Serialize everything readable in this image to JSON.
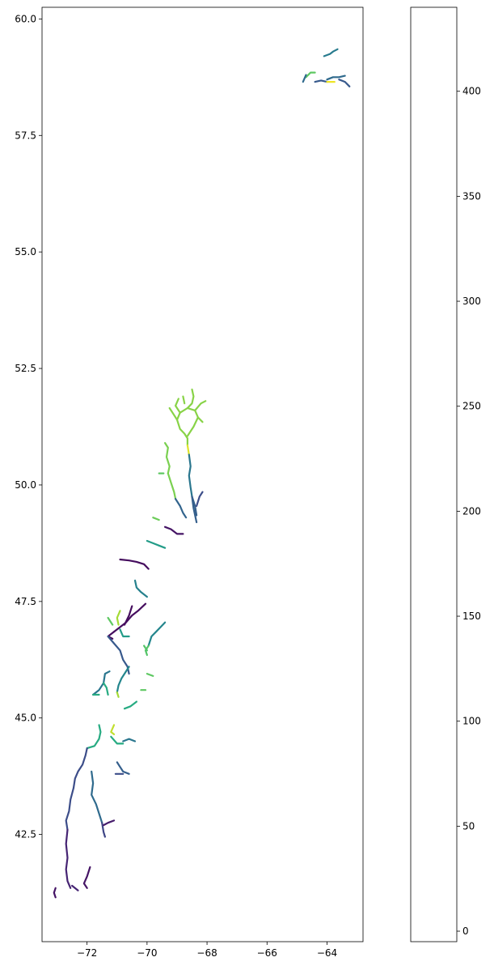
{
  "chart_data": {
    "type": "line",
    "title": "",
    "xlabel": "",
    "ylabel": "",
    "xlim": [
      -73.5,
      -62.8
    ],
    "ylim": [
      40.2,
      60.25
    ],
    "xticks": [
      -72,
      -70,
      -68,
      -66,
      -64
    ],
    "xtick_labels": [
      "−72",
      "−70",
      "−68",
      "−66",
      "−64"
    ],
    "yticks": [
      42.5,
      45.0,
      47.5,
      50.0,
      52.5,
      55.0,
      57.5,
      60.0
    ],
    "ytick_labels": [
      "42.5",
      "45.0",
      "47.5",
      "50.0",
      "52.5",
      "55.0",
      "57.5",
      "60.0"
    ],
    "colorbar": {
      "colormap": "viridis",
      "range": [
        -5,
        440
      ],
      "ticks": [
        0,
        50,
        100,
        150,
        200,
        250,
        300,
        350,
        400
      ],
      "tick_labels": [
        "0",
        "50",
        "100",
        "150",
        "200",
        "250",
        "300",
        "350",
        "400"
      ]
    },
    "segments": [
      {
        "value": 180,
        "points": [
          [
            -64.1,
            59.2
          ],
          [
            -63.9,
            59.25
          ],
          [
            -63.8,
            59.3
          ],
          [
            -63.65,
            59.35
          ]
        ]
      },
      {
        "value": 330,
        "points": [
          [
            -64.7,
            58.75
          ],
          [
            -64.55,
            58.85
          ],
          [
            -64.4,
            58.85
          ]
        ]
      },
      {
        "value": 120,
        "points": [
          [
            -64.4,
            58.65
          ],
          [
            -64.2,
            58.68
          ],
          [
            -64.0,
            58.65
          ]
        ]
      },
      {
        "value": 150,
        "points": [
          [
            -64.0,
            58.7
          ],
          [
            -63.8,
            58.75
          ],
          [
            -63.6,
            58.75
          ],
          [
            -63.4,
            58.78
          ]
        ]
      },
      {
        "value": 430,
        "points": [
          [
            -64.0,
            58.65
          ],
          [
            -63.75,
            58.65
          ]
        ]
      },
      {
        "value": 120,
        "points": [
          [
            -63.6,
            58.7
          ],
          [
            -63.4,
            58.65
          ],
          [
            -63.25,
            58.55
          ]
        ]
      },
      {
        "value": 150,
        "points": [
          [
            -64.8,
            58.65
          ],
          [
            -64.7,
            58.8
          ]
        ]
      },
      {
        "value": 360,
        "points": [
          [
            -68.5,
            52.05
          ],
          [
            -68.45,
            51.9
          ],
          [
            -68.5,
            51.75
          ],
          [
            -68.65,
            51.65
          ]
        ]
      },
      {
        "value": 360,
        "points": [
          [
            -68.65,
            51.65
          ],
          [
            -68.9,
            51.55
          ],
          [
            -69.0,
            51.4
          ],
          [
            -68.9,
            51.2
          ],
          [
            -68.75,
            51.1
          ],
          [
            -68.65,
            51.0
          ],
          [
            -68.65,
            50.85
          ]
        ]
      },
      {
        "value": 360,
        "points": [
          [
            -68.65,
            51.65
          ],
          [
            -68.4,
            51.6
          ],
          [
            -68.3,
            51.45
          ],
          [
            -68.45,
            51.25
          ],
          [
            -68.65,
            51.05
          ]
        ]
      },
      {
        "value": 360,
        "points": [
          [
            -68.4,
            51.6
          ],
          [
            -68.2,
            51.75
          ],
          [
            -68.05,
            51.8
          ]
        ]
      },
      {
        "value": 360,
        "points": [
          [
            -68.9,
            51.55
          ],
          [
            -69.05,
            51.7
          ],
          [
            -68.95,
            51.85
          ]
        ]
      },
      {
        "value": 360,
        "points": [
          [
            -69.0,
            51.4
          ],
          [
            -69.15,
            51.55
          ],
          [
            -69.25,
            51.65
          ]
        ]
      },
      {
        "value": 360,
        "points": [
          [
            -68.3,
            51.45
          ],
          [
            -68.15,
            51.35
          ]
        ]
      },
      {
        "value": 360,
        "points": [
          [
            -68.75,
            51.75
          ],
          [
            -68.8,
            51.9
          ]
        ]
      },
      {
        "value": 420,
        "points": [
          [
            -68.65,
            50.85
          ],
          [
            -68.6,
            50.65
          ]
        ]
      },
      {
        "value": 170,
        "points": [
          [
            -68.6,
            50.65
          ],
          [
            -68.55,
            50.4
          ],
          [
            -68.6,
            50.2
          ],
          [
            -68.55,
            49.95
          ],
          [
            -68.5,
            49.75
          ]
        ]
      },
      {
        "value": 130,
        "points": [
          [
            -68.5,
            49.75
          ],
          [
            -68.4,
            49.55
          ],
          [
            -68.35,
            49.35
          ]
        ]
      },
      {
        "value": 100,
        "points": [
          [
            -68.35,
            49.55
          ],
          [
            -68.25,
            49.75
          ],
          [
            -68.15,
            49.85
          ]
        ]
      },
      {
        "value": 130,
        "points": [
          [
            -68.5,
            49.75
          ],
          [
            -68.45,
            49.5
          ],
          [
            -68.35,
            49.2
          ]
        ]
      },
      {
        "value": 350,
        "points": [
          [
            -69.4,
            50.9
          ],
          [
            -69.3,
            50.8
          ],
          [
            -69.35,
            50.6
          ],
          [
            -69.25,
            50.4
          ],
          [
            -69.3,
            50.25
          ]
        ]
      },
      {
        "value": 350,
        "points": [
          [
            -69.3,
            50.25
          ],
          [
            -69.2,
            50.05
          ],
          [
            -69.1,
            49.85
          ],
          [
            -69.05,
            49.7
          ]
        ]
      },
      {
        "value": 330,
        "points": [
          [
            -69.6,
            50.25
          ],
          [
            -69.45,
            50.25
          ]
        ]
      },
      {
        "value": 140,
        "points": [
          [
            -69.05,
            49.7
          ],
          [
            -68.9,
            49.55
          ],
          [
            -68.8,
            49.4
          ],
          [
            -68.7,
            49.3
          ]
        ]
      },
      {
        "value": 20,
        "points": [
          [
            -69.4,
            49.1
          ],
          [
            -69.2,
            49.05
          ],
          [
            -69.0,
            48.95
          ],
          [
            -68.8,
            48.95
          ]
        ]
      },
      {
        "value": 340,
        "points": [
          [
            -69.8,
            49.3
          ],
          [
            -69.6,
            49.25
          ]
        ]
      },
      {
        "value": 240,
        "points": [
          [
            -70.0,
            48.8
          ],
          [
            -69.8,
            48.75
          ],
          [
            -69.6,
            48.7
          ],
          [
            -69.4,
            48.65
          ]
        ]
      },
      {
        "value": 10,
        "points": [
          [
            -70.9,
            48.4
          ],
          [
            -70.6,
            48.38
          ],
          [
            -70.35,
            48.35
          ],
          [
            -70.1,
            48.3
          ],
          [
            -69.95,
            48.2
          ]
        ]
      },
      {
        "value": 190,
        "points": [
          [
            -70.4,
            47.95
          ],
          [
            -70.35,
            47.8
          ],
          [
            -70.2,
            47.7
          ],
          [
            -70.0,
            47.6
          ]
        ]
      },
      {
        "value": 10,
        "points": [
          [
            -70.05,
            47.45
          ],
          [
            -70.3,
            47.3
          ],
          [
            -70.5,
            47.2
          ],
          [
            -70.7,
            47.05
          ],
          [
            -70.9,
            46.95
          ],
          [
            -71.1,
            46.85
          ]
        ]
      },
      {
        "value": 10,
        "points": [
          [
            -71.1,
            46.85
          ],
          [
            -71.3,
            46.75
          ],
          [
            -71.15,
            46.7
          ]
        ]
      },
      {
        "value": 10,
        "points": [
          [
            -70.5,
            47.4
          ],
          [
            -70.6,
            47.2
          ],
          [
            -70.75,
            47.0
          ]
        ]
      },
      {
        "value": 380,
        "points": [
          [
            -70.9,
            47.3
          ],
          [
            -71.0,
            47.15
          ],
          [
            -70.95,
            47.0
          ]
        ]
      },
      {
        "value": 330,
        "points": [
          [
            -71.3,
            47.15
          ],
          [
            -71.15,
            47.0
          ]
        ]
      },
      {
        "value": 120,
        "points": [
          [
            -71.3,
            46.75
          ],
          [
            -71.1,
            46.6
          ],
          [
            -70.9,
            46.45
          ],
          [
            -70.8,
            46.25
          ],
          [
            -70.65,
            46.1
          ],
          [
            -70.6,
            45.95
          ]
        ]
      },
      {
        "value": 240,
        "points": [
          [
            -70.9,
            46.9
          ],
          [
            -70.8,
            46.75
          ],
          [
            -70.6,
            46.75
          ]
        ]
      },
      {
        "value": 200,
        "points": [
          [
            -70.6,
            46.1
          ],
          [
            -70.75,
            45.95
          ],
          [
            -70.85,
            45.85
          ],
          [
            -70.95,
            45.7
          ],
          [
            -71.0,
            45.55
          ]
        ]
      },
      {
        "value": 380,
        "points": [
          [
            -71.0,
            45.55
          ],
          [
            -70.95,
            45.45
          ]
        ]
      },
      {
        "value": 200,
        "points": [
          [
            -69.4,
            47.05
          ],
          [
            -69.55,
            46.95
          ],
          [
            -69.7,
            46.85
          ],
          [
            -69.85,
            46.75
          ],
          [
            -69.95,
            46.55
          ]
        ]
      },
      {
        "value": 320,
        "points": [
          [
            -69.95,
            46.55
          ],
          [
            -70.05,
            46.45
          ],
          [
            -70.0,
            46.35
          ]
        ]
      },
      {
        "value": 320,
        "points": [
          [
            -70.1,
            46.55
          ],
          [
            -70.0,
            46.45
          ]
        ]
      },
      {
        "value": 330,
        "points": [
          [
            -70.0,
            45.95
          ],
          [
            -69.8,
            45.9
          ]
        ]
      },
      {
        "value": 330,
        "points": [
          [
            -70.2,
            45.6
          ],
          [
            -70.05,
            45.6
          ]
        ]
      },
      {
        "value": 270,
        "points": [
          [
            -70.35,
            45.35
          ],
          [
            -70.55,
            45.25
          ],
          [
            -70.75,
            45.2
          ]
        ]
      },
      {
        "value": 170,
        "points": [
          [
            -71.8,
            45.5
          ],
          [
            -71.6,
            45.6
          ],
          [
            -71.45,
            45.75
          ],
          [
            -71.4,
            45.95
          ],
          [
            -71.25,
            46.0
          ]
        ]
      },
      {
        "value": 270,
        "points": [
          [
            -71.45,
            45.75
          ],
          [
            -71.35,
            45.65
          ],
          [
            -71.3,
            45.5
          ]
        ]
      },
      {
        "value": 270,
        "points": [
          [
            -71.8,
            45.5
          ],
          [
            -71.6,
            45.5
          ]
        ]
      },
      {
        "value": 270,
        "points": [
          [
            -71.6,
            44.85
          ],
          [
            -71.55,
            44.7
          ],
          [
            -71.6,
            44.55
          ],
          [
            -71.75,
            44.4
          ],
          [
            -72.0,
            44.35
          ]
        ]
      },
      {
        "value": 400,
        "points": [
          [
            -71.1,
            44.85
          ],
          [
            -71.2,
            44.7
          ],
          [
            -71.1,
            44.65
          ]
        ]
      },
      {
        "value": 270,
        "points": [
          [
            -71.2,
            44.6
          ],
          [
            -71.0,
            44.45
          ],
          [
            -70.8,
            44.45
          ]
        ]
      },
      {
        "value": 170,
        "points": [
          [
            -70.8,
            44.5
          ],
          [
            -70.6,
            44.55
          ],
          [
            -70.4,
            44.5
          ]
        ]
      },
      {
        "value": 130,
        "points": [
          [
            -71.0,
            44.05
          ],
          [
            -70.9,
            43.95
          ],
          [
            -70.8,
            43.85
          ],
          [
            -70.6,
            43.8
          ]
        ]
      },
      {
        "value": 100,
        "points": [
          [
            -71.05,
            43.8
          ],
          [
            -70.8,
            43.8
          ]
        ]
      },
      {
        "value": 100,
        "points": [
          [
            -72.0,
            44.35
          ],
          [
            -72.05,
            44.2
          ],
          [
            -72.15,
            44.0
          ],
          [
            -72.3,
            43.85
          ],
          [
            -72.4,
            43.7
          ],
          [
            -72.45,
            43.5
          ]
        ]
      },
      {
        "value": 100,
        "points": [
          [
            -72.45,
            43.5
          ],
          [
            -72.55,
            43.25
          ],
          [
            -72.6,
            43.0
          ],
          [
            -72.7,
            42.8
          ],
          [
            -72.65,
            42.6
          ]
        ]
      },
      {
        "value": 40,
        "points": [
          [
            -72.65,
            42.6
          ],
          [
            -72.7,
            42.3
          ],
          [
            -72.65,
            42.0
          ],
          [
            -72.7,
            41.75
          ],
          [
            -72.65,
            41.5
          ],
          [
            -72.55,
            41.35
          ]
        ]
      },
      {
        "value": 40,
        "points": [
          [
            -72.5,
            41.4
          ],
          [
            -72.3,
            41.3
          ]
        ]
      },
      {
        "value": 150,
        "points": [
          [
            -71.85,
            43.85
          ],
          [
            -71.8,
            43.6
          ],
          [
            -71.85,
            43.35
          ],
          [
            -71.7,
            43.15
          ],
          [
            -71.6,
            42.95
          ],
          [
            -71.5,
            42.75
          ]
        ]
      },
      {
        "value": 90,
        "points": [
          [
            -71.5,
            42.75
          ],
          [
            -71.45,
            42.55
          ],
          [
            -71.4,
            42.45
          ]
        ]
      },
      {
        "value": 30,
        "points": [
          [
            -71.45,
            42.7
          ],
          [
            -71.3,
            42.75
          ],
          [
            -71.1,
            42.8
          ]
        ]
      },
      {
        "value": 20,
        "points": [
          [
            -71.9,
            41.8
          ],
          [
            -72.0,
            41.6
          ],
          [
            -72.1,
            41.45
          ],
          [
            -72.0,
            41.35
          ]
        ]
      },
      {
        "value": 20,
        "points": [
          [
            -73.05,
            41.35
          ],
          [
            -73.1,
            41.25
          ],
          [
            -73.05,
            41.15
          ]
        ]
      }
    ]
  }
}
